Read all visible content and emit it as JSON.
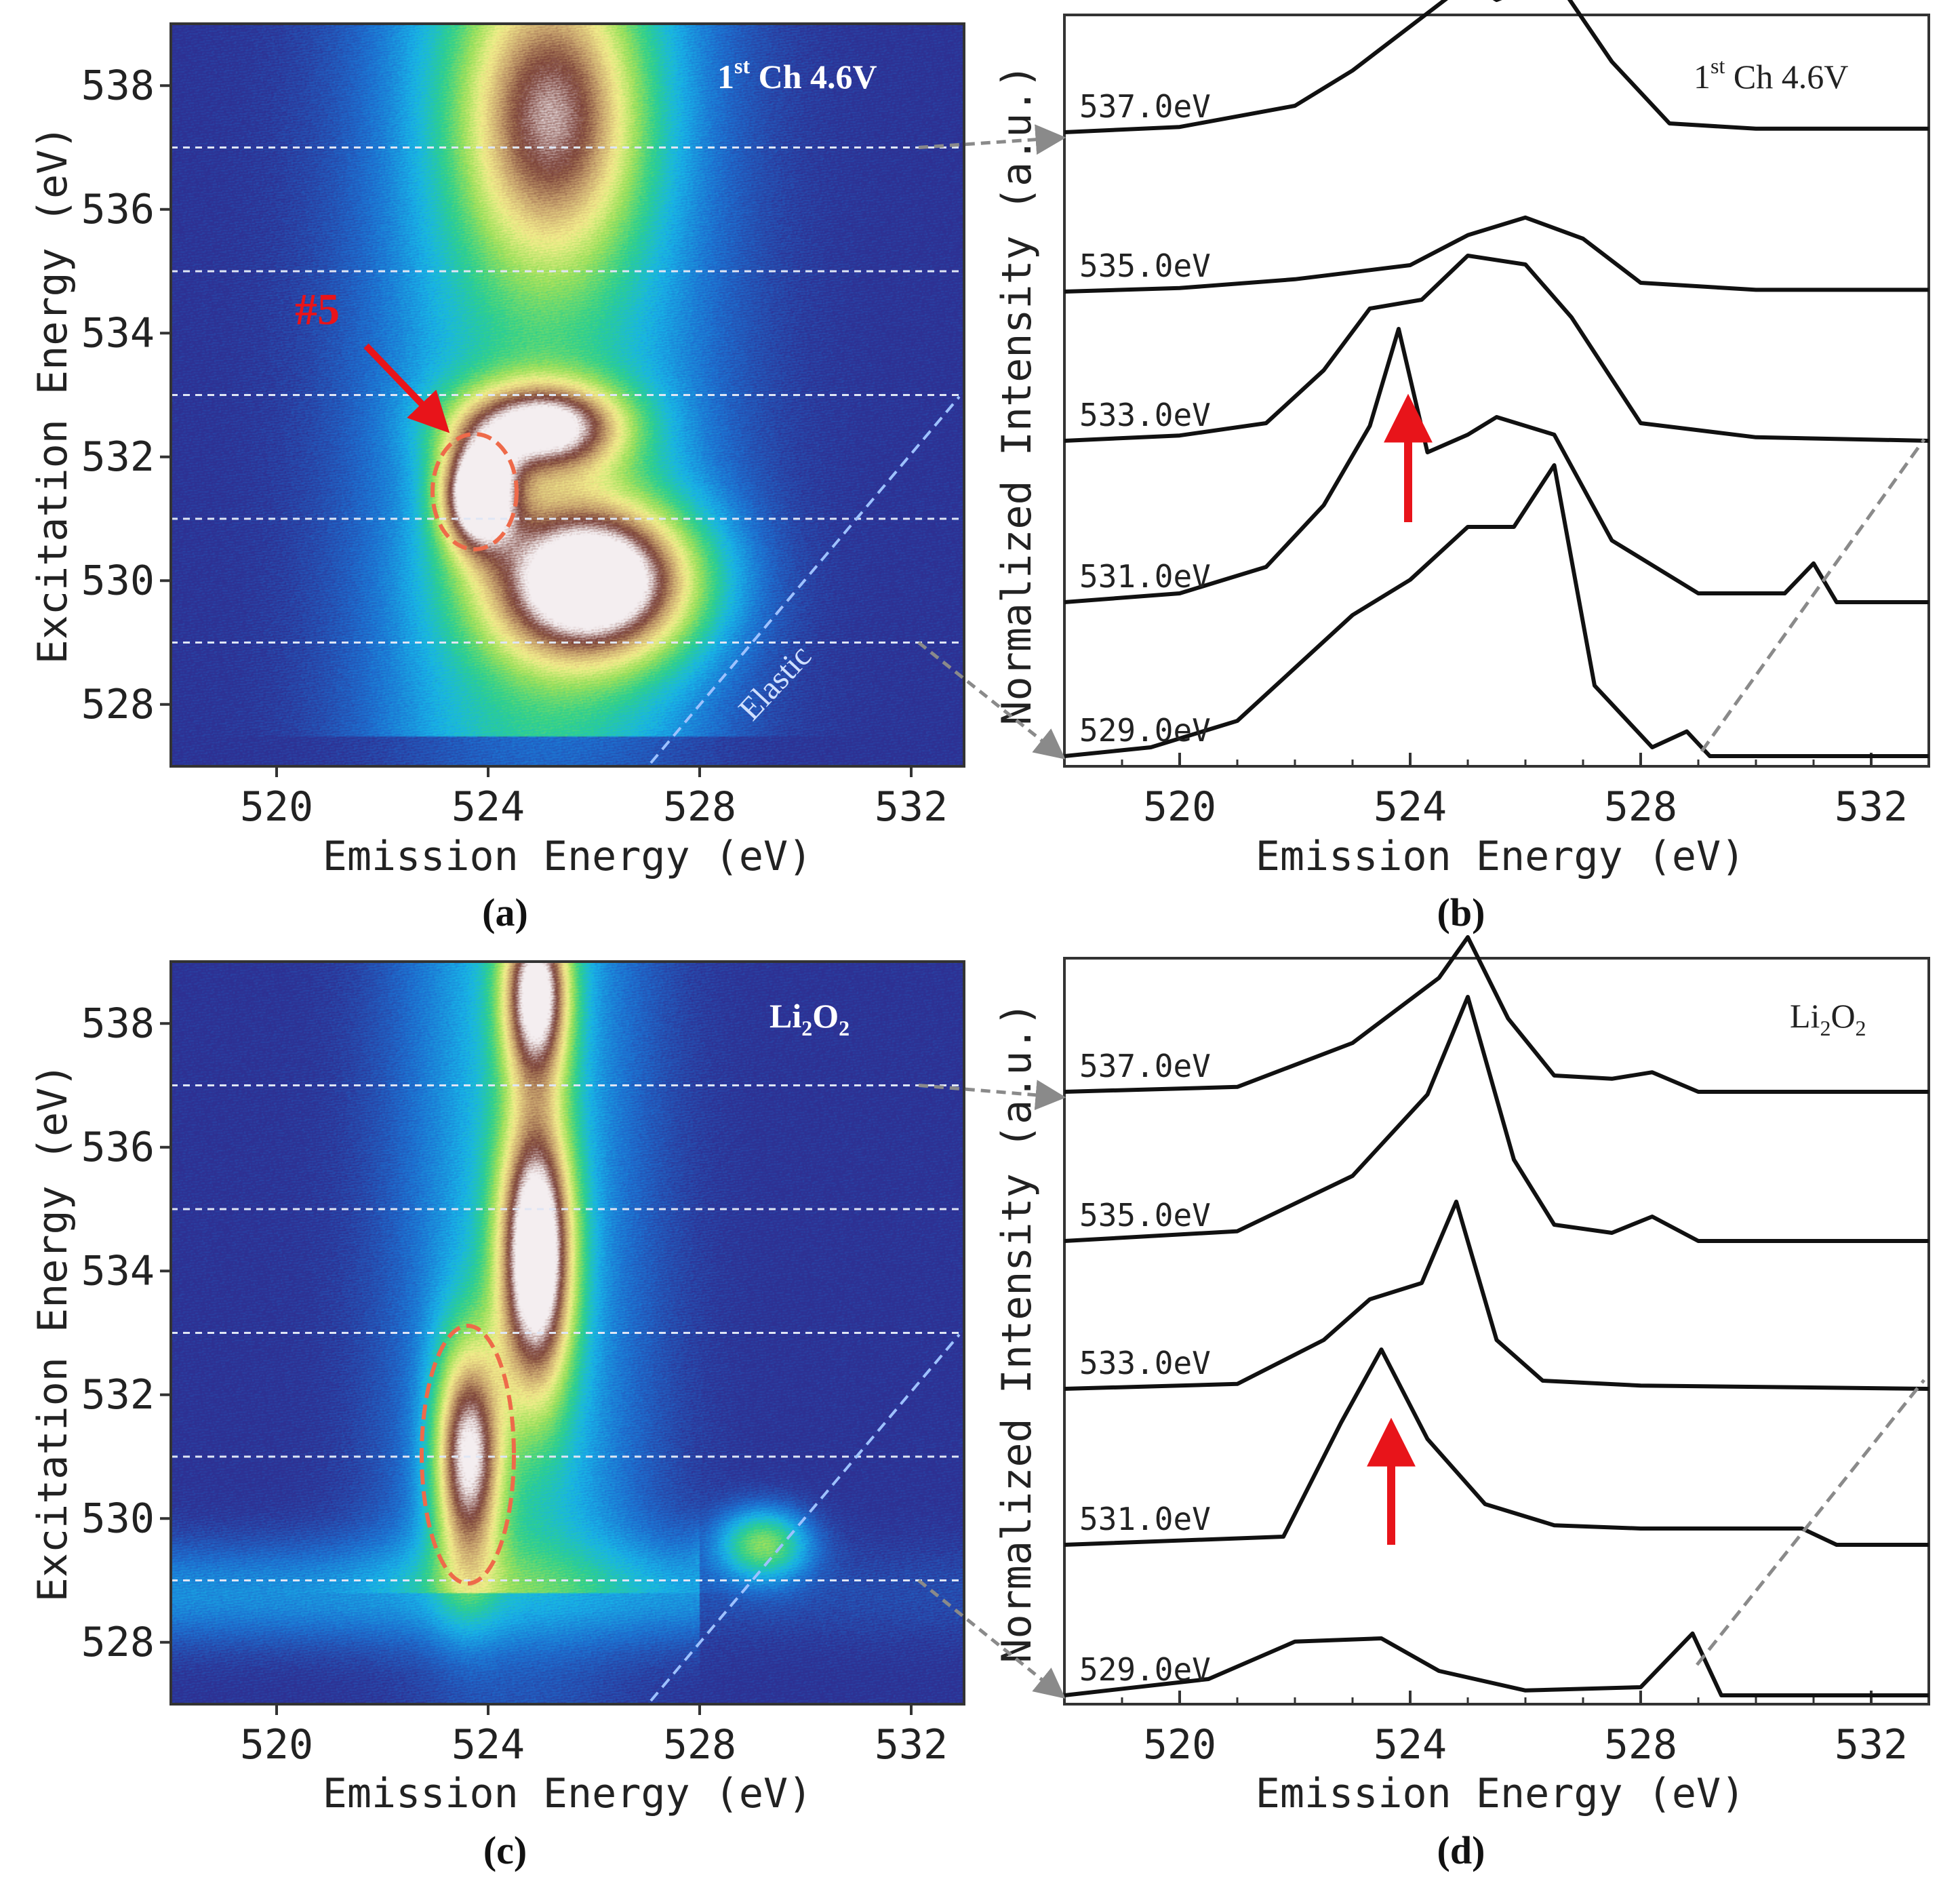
{
  "chart_data": [
    {
      "panel": "a",
      "type": "heatmap",
      "caption": "(a)",
      "title_main": "1",
      "title_sup": "st",
      "title_rest": " Ch 4.6V",
      "xlabel": "Emission Energy (eV)",
      "ylabel": "Excitation Energy (eV)",
      "xlim": [
        518,
        533
      ],
      "ylim": [
        527,
        539
      ],
      "xticks": [
        "520",
        "524",
        "528",
        "532"
      ],
      "yticks": [
        "528",
        "530",
        "532",
        "534",
        "536",
        "538"
      ],
      "cut_lines_eV": [
        529,
        531,
        533,
        535,
        537
      ],
      "elastic_label": "Elastic",
      "feature_label": "#5",
      "feature_center": {
        "x": 523.7,
        "y": 531.4
      },
      "colormap": [
        "#2e3092",
        "#1d6fd0",
        "#18b4e8",
        "#2ed08c",
        "#9be05a",
        "#f4ee8c",
        "#c9a46e",
        "#7a4038",
        "#f4eef0"
      ],
      "blobs": [
        {
          "x": 526.0,
          "y": 530.0,
          "sx": 1.4,
          "sy": 0.9,
          "peak": 1.0
        },
        {
          "x": 523.8,
          "y": 531.4,
          "sx": 0.5,
          "sy": 0.6,
          "peak": 0.95
        },
        {
          "x": 525.0,
          "y": 532.5,
          "sx": 1.1,
          "sy": 0.5,
          "peak": 0.8
        },
        {
          "x": 525.2,
          "y": 537.5,
          "sx": 1.2,
          "sy": 1.6,
          "peak": 0.6
        }
      ]
    },
    {
      "panel": "b",
      "type": "line",
      "caption": "(b)",
      "title_main": "1",
      "title_sup": "st",
      "title_rest": " Ch 4.6V",
      "xlabel": "Emission Energy (eV)",
      "ylabel": "Normalized Intensity (a.u.)",
      "xlim": [
        518,
        533
      ],
      "xticks": [
        "520",
        "524",
        "528",
        "532"
      ],
      "series": [
        {
          "name": "537.0eV",
          "x": [
            518,
            520,
            522,
            523,
            524,
            525,
            525.5,
            526.5,
            527.5,
            528.5,
            530,
            533
          ],
          "y": [
            0.0,
            0.03,
            0.15,
            0.35,
            0.6,
            0.85,
            0.75,
            0.88,
            0.4,
            0.05,
            0.02,
            0.02
          ]
        },
        {
          "name": "535.0eV",
          "x": [
            518,
            520,
            522,
            524,
            525,
            526,
            527,
            528,
            530,
            533
          ],
          "y": [
            0.0,
            0.02,
            0.07,
            0.15,
            0.32,
            0.42,
            0.3,
            0.05,
            0.01,
            0.01
          ]
        },
        {
          "name": "533.0eV",
          "x": [
            518,
            520,
            521.5,
            522.5,
            523.3,
            524.2,
            525,
            526,
            526.8,
            528,
            530,
            533
          ],
          "y": [
            0.0,
            0.03,
            0.1,
            0.4,
            0.75,
            0.8,
            1.05,
            1.0,
            0.7,
            0.1,
            0.02,
            0.0
          ]
        },
        {
          "name": "531.0eV",
          "x": [
            518,
            520,
            521.5,
            522.5,
            523.3,
            523.8,
            524.3,
            525,
            525.5,
            526.5,
            527.5,
            529,
            530.5,
            531,
            531.4,
            533
          ],
          "y": [
            0.0,
            0.05,
            0.2,
            0.55,
            1.0,
            1.55,
            0.85,
            0.95,
            1.05,
            0.95,
            0.35,
            0.05,
            0.05,
            0.22,
            0.0,
            0.0
          ]
        },
        {
          "name": "529.0eV",
          "x": [
            518,
            519.5,
            521,
            522,
            523,
            524,
            525,
            525.8,
            526.5,
            527.2,
            528.2,
            528.8,
            529.2,
            533
          ],
          "y": [
            0.0,
            0.05,
            0.2,
            0.5,
            0.8,
            1.0,
            1.3,
            1.3,
            1.65,
            0.4,
            0.05,
            0.14,
            0.0,
            0.0
          ]
        }
      ],
      "annotation": "red arrow at 524 eV"
    },
    {
      "panel": "c",
      "type": "heatmap",
      "caption": "(c)",
      "title_main": "Li",
      "title_sub1": "2",
      "title_mid": "O",
      "title_sub2": "2",
      "xlabel": "Emission Energy (eV)",
      "ylabel": "Excitation Energy (eV)",
      "xlim": [
        518,
        533
      ],
      "ylim": [
        527,
        539
      ],
      "xticks": [
        "520",
        "524",
        "528",
        "532"
      ],
      "yticks": [
        "528",
        "530",
        "532",
        "534",
        "536",
        "538"
      ],
      "cut_lines_eV": [
        529,
        531,
        533,
        535,
        537
      ],
      "feature_center": {
        "x": 523.6,
        "y": 531.0
      },
      "colormap": [
        "#2e3092",
        "#1d6fd0",
        "#18b4e8",
        "#2ed08c",
        "#9be05a",
        "#f4ee8c",
        "#c9a46e",
        "#7a4038",
        "#f4eef0"
      ],
      "blobs": [
        {
          "x": 524.9,
          "y": 534.3,
          "sx": 0.5,
          "sy": 1.6,
          "peak": 1.0
        },
        {
          "x": 524.9,
          "y": 538.5,
          "sx": 0.45,
          "sy": 1.0,
          "peak": 0.85
        },
        {
          "x": 523.6,
          "y": 531.0,
          "sx": 0.45,
          "sy": 1.3,
          "peak": 0.82
        },
        {
          "x": 529.2,
          "y": 529.6,
          "sx": 0.6,
          "sy": 0.4,
          "peak": 0.45
        }
      ]
    },
    {
      "panel": "d",
      "type": "line",
      "caption": "(d)",
      "title_main": "Li",
      "title_sub1": "2",
      "title_mid": "O",
      "title_sub2": "2",
      "xlabel": "Emission Energy (eV)",
      "ylabel": "Normalized Intensity (a.u.)",
      "xlim": [
        518,
        533
      ],
      "xticks": [
        "520",
        "524",
        "528",
        "532"
      ],
      "series": [
        {
          "name": "537.0eV",
          "x": [
            518,
            521,
            523,
            524.5,
            525,
            525.7,
            526.5,
            527.5,
            528.2,
            529,
            533
          ],
          "y": [
            0.0,
            0.03,
            0.3,
            0.7,
            0.95,
            0.45,
            0.1,
            0.08,
            0.12,
            0.0,
            0.0
          ]
        },
        {
          "name": "535.0eV",
          "x": [
            518,
            521,
            523,
            524.3,
            525,
            525.8,
            526.5,
            527.5,
            528.2,
            529,
            533
          ],
          "y": [
            0.0,
            0.06,
            0.4,
            0.9,
            1.5,
            0.5,
            0.1,
            0.05,
            0.15,
            0.0,
            0.0
          ]
        },
        {
          "name": "533.0eV",
          "x": [
            518,
            521,
            522.5,
            523.3,
            524.2,
            524.8,
            525.5,
            526.3,
            528,
            533
          ],
          "y": [
            0.0,
            0.03,
            0.3,
            0.55,
            0.65,
            1.15,
            0.3,
            0.05,
            0.02,
            0.0
          ]
        },
        {
          "name": "531.0eV",
          "x": [
            518,
            521.8,
            522.8,
            523.5,
            524.3,
            525.3,
            526.5,
            528,
            530,
            530.8,
            531.4,
            533
          ],
          "y": [
            0.0,
            0.05,
            0.75,
            1.2,
            0.65,
            0.25,
            0.12,
            0.1,
            0.1,
            0.1,
            0.0,
            0.0
          ]
        },
        {
          "name": "529.0eV",
          "x": [
            518,
            520.5,
            522,
            523.5,
            524.5,
            526,
            528,
            528.9,
            529.4,
            533
          ],
          "y": [
            0.0,
            0.1,
            0.33,
            0.35,
            0.15,
            0.03,
            0.05,
            0.38,
            0.0,
            0.0
          ]
        }
      ],
      "annotation": "red arrow at 523.5 eV"
    }
  ]
}
